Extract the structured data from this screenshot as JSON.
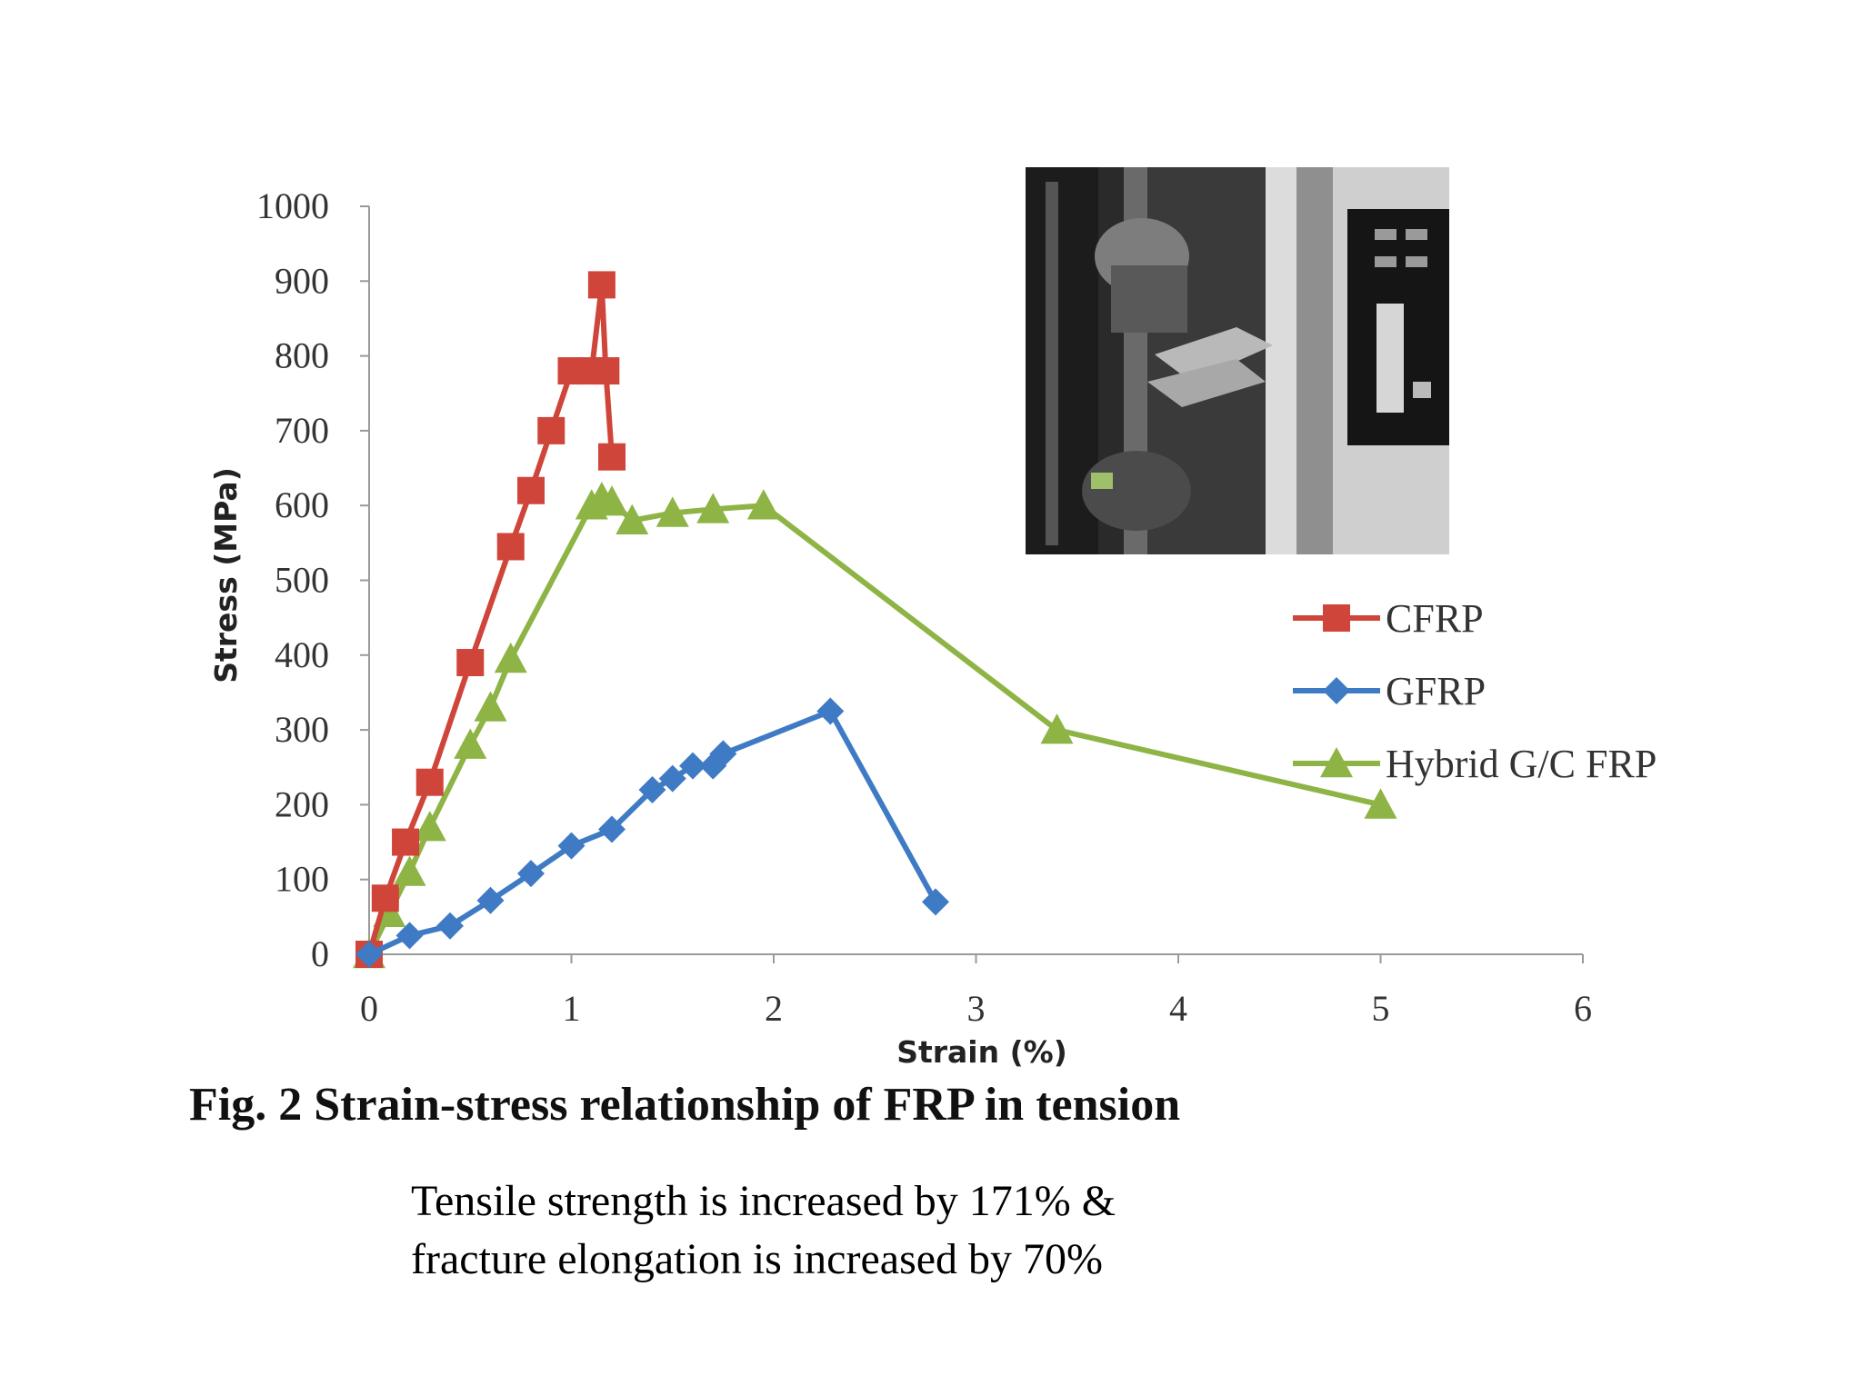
{
  "caption": "Fig. 2 Strain-stress relationship of FRP in tension",
  "note": {
    "line1": "Tensile strength is increased by 171% &",
    "line2": "fracture elongation is increased by 70%"
  },
  "photo": {
    "description_icon": "tensile-testing-machine-photo"
  },
  "chart_data": {
    "type": "line",
    "title": "",
    "xlabel": "Strain (%)",
    "ylabel": "Stress (MPa)",
    "xlim": [
      0,
      6
    ],
    "ylim": [
      0,
      1000
    ],
    "xticks": [
      "0",
      "1",
      "2",
      "3",
      "4",
      "5",
      "6"
    ],
    "yticks": [
      "0",
      "100",
      "200",
      "300",
      "400",
      "500",
      "600",
      "700",
      "800",
      "900",
      "1000"
    ],
    "grid": false,
    "legend_position": "right",
    "series": [
      {
        "name": "CFRP",
        "color": "#d0453a",
        "marker": "square",
        "x": [
          0,
          0.08,
          0.18,
          0.3,
          0.5,
          0.7,
          0.8,
          0.9,
          1.0,
          1.1,
          1.15,
          1.17,
          1.2
        ],
        "y": [
          0,
          75,
          150,
          230,
          390,
          545,
          620,
          700,
          780,
          780,
          895,
          780,
          665
        ]
      },
      {
        "name": "GFRP",
        "color": "#3f7bc4",
        "marker": "diamond",
        "x": [
          0,
          0.2,
          0.4,
          0.6,
          0.8,
          1.0,
          1.2,
          1.4,
          1.5,
          1.6,
          1.7,
          1.75,
          2.28,
          2.8
        ],
        "y": [
          0,
          25,
          38,
          72,
          108,
          145,
          167,
          220,
          235,
          252,
          252,
          268,
          325,
          70
        ]
      },
      {
        "name": "Hybrid G/C FRP",
        "color": "#8db445",
        "marker": "triangle",
        "x": [
          0,
          0.1,
          0.2,
          0.3,
          0.5,
          0.6,
          0.7,
          1.1,
          1.15,
          1.2,
          1.3,
          1.5,
          1.7,
          1.95,
          3.4,
          5.0
        ],
        "y": [
          0,
          55,
          110,
          170,
          280,
          330,
          395,
          600,
          610,
          605,
          580,
          590,
          595,
          600,
          300,
          200
        ]
      }
    ]
  }
}
